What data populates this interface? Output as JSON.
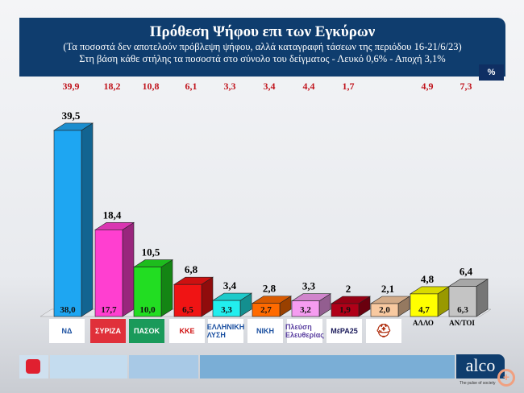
{
  "header": {
    "title": "Πρόθεση Ψήφου επι των Εγκύρων",
    "subtitle1": "(Τα ποσοστά δεν αποτελούν πρόβλεψη ψήφου, αλλά καταγραφή τάσεων της περιόδου  16-21/6/23)",
    "subtitle2": "Στη βάση κάθε στήλης τα ποσοστά στο σύνολο του δείγματος - Λευκό 0,6% - Αποχή 3,1%"
  },
  "unit_badge": "%",
  "chart_data": {
    "type": "bar",
    "title": "Πρόθεση Ψήφου επι των Εγκύρων",
    "categories": [
      "ΝΔ",
      "ΣΥΡΙΖΑ",
      "ΠΑΣΟΚ",
      "ΚΚΕ",
      "ΕΛΛΗΝΙΚΗ ΛΥΣΗ",
      "ΝΙΚΗ",
      "Πλεύση Ελευθερίας",
      "ΜέΡΑ25",
      "Σπαρτιάτες",
      "ΑΛΛΟ",
      "ΑΝ/ΤΟΙ"
    ],
    "series": [
      {
        "name": "top",
        "values": [
          39.5,
          18.4,
          10.5,
          6.8,
          3.4,
          2.8,
          3.3,
          2,
          2.1,
          4.8,
          6.4
        ],
        "labels": [
          "39,5",
          "18,4",
          "10,5",
          "6,8",
          "3,4",
          "2,8",
          "3,3",
          "2",
          "2,1",
          "4,8",
          "6,4"
        ]
      },
      {
        "name": "inside",
        "values": [
          38.0,
          17.7,
          10.0,
          6.5,
          3.3,
          2.7,
          3.2,
          1.9,
          2.0,
          4.7,
          6.3
        ],
        "labels": [
          "38,0",
          "17,7",
          "10,0",
          "6,5",
          "3,3",
          "2,7",
          "3,2",
          "1,9",
          "2,0",
          "4,7",
          "6,3"
        ]
      },
      {
        "name": "previous",
        "values": [
          39.9,
          18.2,
          10.8,
          6.1,
          3.3,
          3.4,
          4.4,
          1.7,
          null,
          4.9,
          7.3
        ],
        "labels": [
          "39,9",
          "18,2",
          "10,8",
          "6,1",
          "3,3",
          "3,4",
          "4,4",
          "1,7",
          "",
          "4,9",
          "7,3"
        ]
      }
    ],
    "colors": [
      "#1ea6f2",
      "#ff3fd0",
      "#22dd22",
      "#f01414",
      "#22eeee",
      "#ff6a00",
      "#f59cf0",
      "#b00018",
      "#f8c9a0",
      "#ffff00",
      "#c4c4c4"
    ],
    "logo_texts": [
      "ΝΔ",
      "ΣΥΡΙΖΑ",
      "ΠΑΣΟΚ",
      "ΚΚΕ",
      "ΕΛΛΗΝΙΚΗ ΛΥΣΗ",
      "ΝΙΚΗ",
      "Πλεύση Ελευθερίας",
      "ΜέΡΑ25",
      "",
      "ΑΛΛΟ",
      "ΑΝ/ΤΟΙ"
    ],
    "previous_label_color": "#c0141c",
    "grid": false
  },
  "footer": {
    "brand": "alco",
    "tagline": "The pulse of society"
  }
}
